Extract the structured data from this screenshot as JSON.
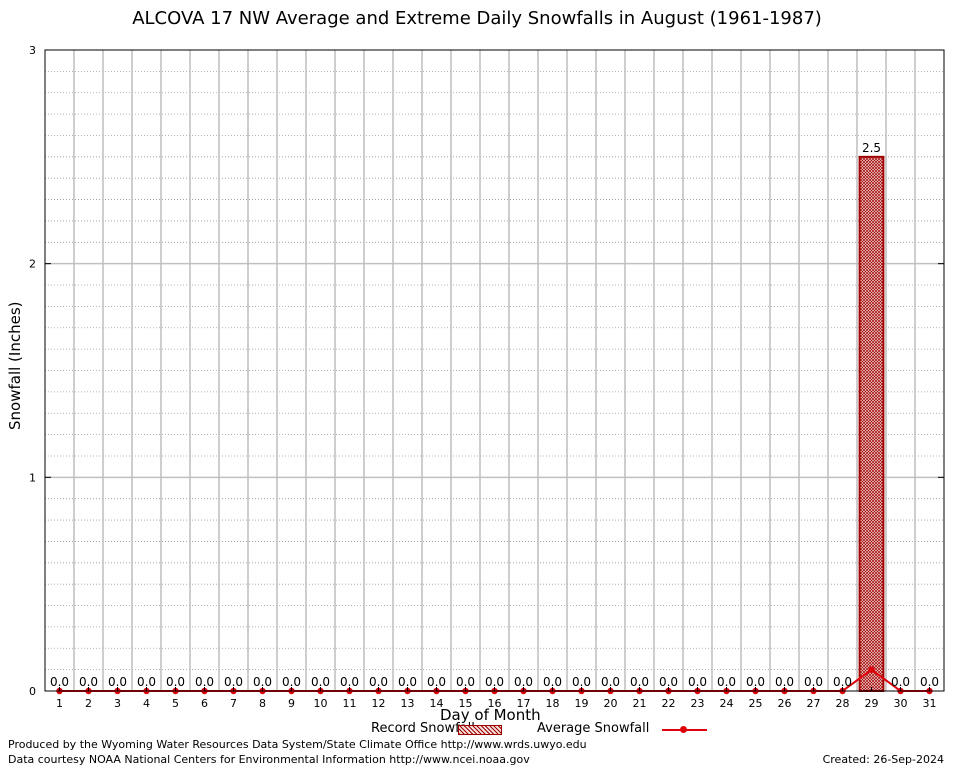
{
  "chart_data": {
    "type": "bar",
    "title": "ALCOVA 17 NW Average and Extreme Daily Snowfalls in August (1961-1987)",
    "xlabel": "Day of Month",
    "ylabel": "Snowfall (Inches)",
    "ylim": [
      0,
      3
    ],
    "yticks": [
      "0",
      "1",
      "2",
      "3"
    ],
    "categories": [
      "1",
      "2",
      "3",
      "4",
      "5",
      "6",
      "7",
      "8",
      "9",
      "10",
      "11",
      "12",
      "13",
      "14",
      "15",
      "16",
      "17",
      "18",
      "19",
      "20",
      "21",
      "22",
      "23",
      "24",
      "25",
      "26",
      "27",
      "28",
      "29",
      "30",
      "31"
    ],
    "series": [
      {
        "name": "Record Snowfall",
        "kind": "bar",
        "color": "#a00000",
        "values": [
          0,
          0,
          0,
          0,
          0,
          0,
          0,
          0,
          0,
          0,
          0,
          0,
          0,
          0,
          0,
          0,
          0,
          0,
          0,
          0,
          0,
          0,
          0,
          0,
          0,
          0,
          0,
          0,
          2.5,
          0,
          0
        ],
        "labels": [
          "0.0",
          "0.0",
          "0.0",
          "0.0",
          "0.0",
          "0.0",
          "0.0",
          "0.0",
          "0.0",
          "0.0",
          "0.0",
          "0.0",
          "0.0",
          "0.0",
          "0.0",
          "0.0",
          "0.0",
          "0.0",
          "0.0",
          "0.0",
          "0.0",
          "0.0",
          "0.0",
          "0.0",
          "0.0",
          "0.0",
          "0.0",
          "0.0",
          "2.5",
          "0.0",
          "0.0"
        ]
      },
      {
        "name": "Average Snowfall",
        "kind": "line",
        "color": "#e0000a",
        "values": [
          0,
          0,
          0,
          0,
          0,
          0,
          0,
          0,
          0,
          0,
          0,
          0,
          0,
          0,
          0,
          0,
          0,
          0,
          0,
          0,
          0,
          0,
          0,
          0,
          0,
          0,
          0,
          0,
          0.1,
          0,
          0
        ]
      }
    ],
    "legend_position": "bottom-center",
    "grid": true
  },
  "footer": {
    "produced_by": "Produced by the Wyoming Water Resources Data System/State Climate Office http://www.wrds.uwyo.edu",
    "courtesy": "Data courtesy NOAA National Centers for Environmental Information http://www.ncei.noaa.gov",
    "created": "Created:  26-Sep-2024"
  }
}
